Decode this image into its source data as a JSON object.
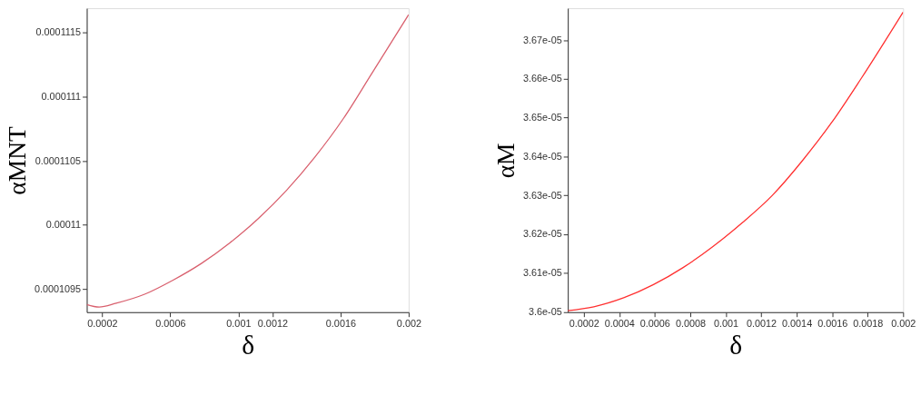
{
  "chart_data": [
    {
      "type": "line",
      "xlabel": "δ",
      "ylabel": "αMNT",
      "grid": false,
      "line_style": "solid",
      "x": [
        0.00011,
        0.000183,
        0.000283,
        0.00045,
        0.000617,
        0.000783,
        0.00095,
        0.001117,
        0.001283,
        0.00145,
        0.001617,
        0.001783,
        0.002
      ],
      "series": [
        {
          "color": "#d9606e",
          "values": [
            0.00010938,
            0.00010936,
            0.00010939,
            0.00010946,
            0.00010957,
            0.0001097,
            0.00010986,
            0.00011005,
            0.00011027,
            0.00011053,
            0.00011083,
            0.00011118,
            0.00011164
          ]
        }
      ],
      "xlim": [
        0.00011,
        0.002
      ],
      "ylim": [
        0.00010932,
        0.00011169
      ],
      "xticks": [
        0.0002,
        0.0006,
        0.001,
        0.0012,
        0.0016,
        0.002
      ],
      "yticks": [
        0.0001095,
        0.00011,
        0.0001105,
        0.000111,
        0.0001115
      ]
    },
    {
      "type": "line",
      "xlabel": "δ",
      "ylabel": "αM",
      "grid": false,
      "line_style": "solid",
      "x": [
        0.00011,
        0.000257,
        0.000425,
        0.000593,
        0.00076,
        0.000928,
        0.001095,
        0.001263,
        0.00143,
        0.001598,
        0.001765,
        0.002
      ],
      "series": [
        {
          "color": "#ff3030",
          "values": [
            3.6003e-05,
            3.6013e-05,
            3.6036e-05,
            3.607e-05,
            3.6114e-05,
            3.6168e-05,
            3.623e-05,
            3.63e-05,
            3.6388e-05,
            3.6488e-05,
            3.6602e-05,
            3.6772e-05
          ]
        }
      ],
      "xlim": [
        0.00011,
        0.002
      ],
      "ylim": [
        3.5999e-05,
        3.6782e-05
      ],
      "xticks": [
        0.0002,
        0.0004,
        0.0006,
        0.0008,
        0.001,
        0.0012,
        0.0014,
        0.0016,
        0.0018,
        0.002
      ],
      "yticks": [
        {
          "value": 3.6e-05,
          "label": "3.6e-05"
        },
        {
          "value": 3.61e-05,
          "label": "3.61e-05"
        },
        {
          "value": 3.62e-05,
          "label": "3.62e-05"
        },
        {
          "value": 3.63e-05,
          "label": "3.63e-05"
        },
        {
          "value": 3.64e-05,
          "label": "3.64e-05"
        },
        {
          "value": 3.65e-05,
          "label": "3.65e-05"
        },
        {
          "value": 3.66e-05,
          "label": "3.66e-05"
        },
        {
          "value": 3.67e-05,
          "label": "3.67e-05"
        }
      ]
    }
  ]
}
